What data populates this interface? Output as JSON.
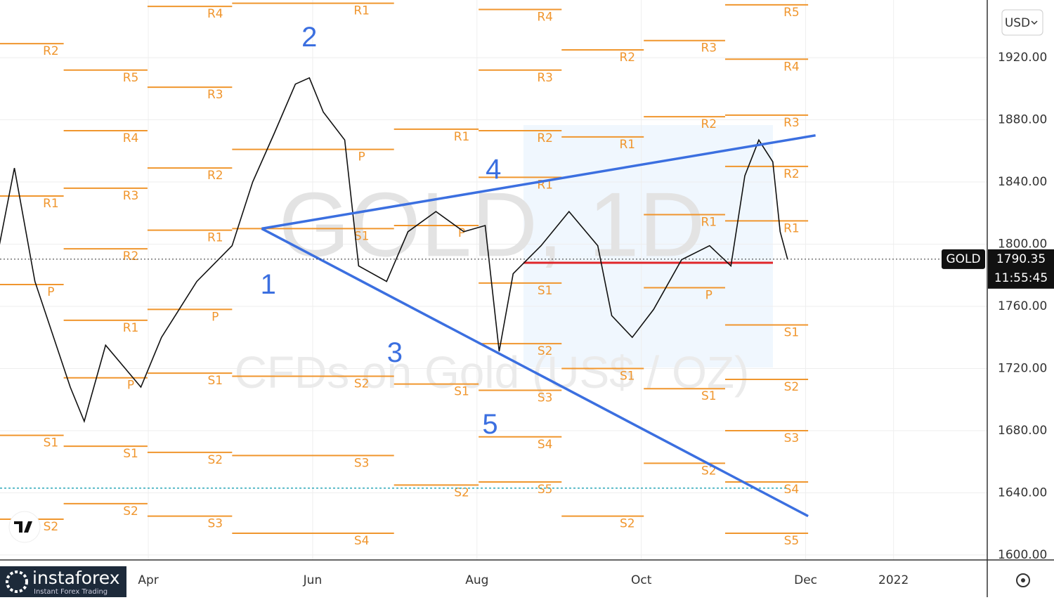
{
  "chart_data": {
    "type": "line",
    "symbol": "GOLD",
    "watermark": "GOLD, 1D",
    "subtitle": "CFDs on Gold (US$ / OZ)",
    "currency": "USD",
    "countdown": "11:55:45",
    "brand": "instaforex",
    "tagline": "Instant Forex Trading",
    "x": [
      2.19,
      2.37,
      2.62,
      3.05,
      3.22,
      3.48,
      3.91,
      4.16,
      4.59,
      5.02,
      5.27,
      5.53,
      5.79,
      5.96,
      6.13,
      6.39,
      6.56,
      6.9,
      7.16,
      7.5,
      7.84,
      8.1,
      8.27,
      8.44,
      8.78,
      9.12,
      9.47,
      9.64,
      9.89,
      10.15,
      10.49,
      10.83,
      11.09,
      11.26,
      11.43,
      11.6,
      11.69,
      11.78
    ],
    "close": [
      1800,
      1849,
      1776,
      1708,
      1686,
      1735,
      1708,
      1740,
      1776,
      1799,
      1840,
      1871,
      1903,
      1907,
      1885,
      1867,
      1786,
      1776,
      1808,
      1821,
      1808,
      1812,
      1731,
      1781,
      1799,
      1821,
      1799,
      1754,
      1740,
      1758,
      1790,
      1799,
      1786,
      1844,
      1867,
      1853,
      1808,
      1790.35
    ],
    "color": "#111111",
    "ylim": [
      1596.8,
      1957.1
    ],
    "yticks": [
      {
        "value": 1600,
        "label": "1600.00"
      },
      {
        "value": 1640,
        "label": "1640.00"
      },
      {
        "value": 1680,
        "label": "1680.00"
      },
      {
        "value": 1720,
        "label": "1720.00"
      },
      {
        "value": 1760,
        "label": "1760.00"
      },
      {
        "value": 1800,
        "label": "1800.00"
      },
      {
        "value": 1840,
        "label": "1840.00"
      },
      {
        "value": 1880,
        "label": "1880.00"
      },
      {
        "value": 1920,
        "label": "1920.00"
      }
    ],
    "xlim": [
      2.195,
      14.21
    ],
    "xticks": [
      {
        "value": 4,
        "label": "Apr"
      },
      {
        "value": 6,
        "label": "Jun"
      },
      {
        "value": 8,
        "label": "Aug"
      },
      {
        "value": 10,
        "label": "Oct"
      },
      {
        "value": 12,
        "label": "Dec"
      },
      {
        "value": 13.07,
        "label": "2022"
      }
    ],
    "grid": true,
    "pivot_color": "#f0962e",
    "pivots": [
      {
        "label": "R2",
        "value": 1929,
        "from": 2.19,
        "to": 2.97
      },
      {
        "label": "R1",
        "value": 1831,
        "from": 2.19,
        "to": 2.97
      },
      {
        "label": "P",
        "value": 1774,
        "from": 2.19,
        "to": 2.97
      },
      {
        "label": "S1",
        "value": 1677,
        "from": 2.19,
        "to": 2.97
      },
      {
        "label": "S2",
        "value": 1623,
        "from": 2.19,
        "to": 2.97
      },
      {
        "label": "R5",
        "value": 1912,
        "from": 2.97,
        "to": 3.99
      },
      {
        "label": "R4",
        "value": 1873,
        "from": 2.97,
        "to": 3.99
      },
      {
        "label": "R3",
        "value": 1836,
        "from": 2.97,
        "to": 3.99
      },
      {
        "label": "R2",
        "value": 1797,
        "from": 2.97,
        "to": 3.99
      },
      {
        "label": "R1",
        "value": 1751,
        "from": 2.97,
        "to": 3.99
      },
      {
        "label": "P",
        "value": 1714,
        "from": 2.97,
        "to": 3.99
      },
      {
        "label": "S1",
        "value": 1670,
        "from": 2.97,
        "to": 3.99
      },
      {
        "label": "S2",
        "value": 1633,
        "from": 2.97,
        "to": 3.99
      },
      {
        "label": "R4",
        "value": 1953,
        "from": 3.99,
        "to": 5.02
      },
      {
        "label": "R3",
        "value": 1901,
        "from": 3.99,
        "to": 5.02
      },
      {
        "label": "R2",
        "value": 1849,
        "from": 3.99,
        "to": 5.02
      },
      {
        "label": "R1",
        "value": 1809,
        "from": 3.99,
        "to": 5.02
      },
      {
        "label": "P",
        "value": 1758,
        "from": 3.99,
        "to": 5.02
      },
      {
        "label": "S1",
        "value": 1717,
        "from": 3.99,
        "to": 5.02
      },
      {
        "label": "S2",
        "value": 1666,
        "from": 3.99,
        "to": 5.02
      },
      {
        "label": "S3",
        "value": 1625,
        "from": 3.99,
        "to": 5.02
      },
      {
        "label": "R1",
        "value": 1955,
        "from": 5.02,
        "to": 6.99
      },
      {
        "label": "P",
        "value": 1861,
        "from": 5.02,
        "to": 6.99
      },
      {
        "label": "S1",
        "value": 1810,
        "from": 5.02,
        "to": 6.99
      },
      {
        "label": "S2",
        "value": 1715,
        "from": 5.02,
        "to": 6.99
      },
      {
        "label": "S3",
        "value": 1664,
        "from": 5.02,
        "to": 6.99
      },
      {
        "label": "S4",
        "value": 1614,
        "from": 5.02,
        "to": 6.99
      },
      {
        "label": "R1",
        "value": 1874,
        "from": 6.99,
        "to": 8.02
      },
      {
        "label": "P",
        "value": 1812,
        "from": 6.99,
        "to": 8.02
      },
      {
        "label": "S1",
        "value": 1710,
        "from": 6.99,
        "to": 8.02
      },
      {
        "label": "S2",
        "value": 1645,
        "from": 6.99,
        "to": 8.02
      },
      {
        "label": "R4",
        "value": 1951,
        "from": 8.02,
        "to": 9.03
      },
      {
        "label": "R3",
        "value": 1912,
        "from": 8.02,
        "to": 9.03
      },
      {
        "label": "R2",
        "value": 1873,
        "from": 8.02,
        "to": 9.03
      },
      {
        "label": "R1",
        "value": 1843,
        "from": 8.02,
        "to": 9.03
      },
      {
        "label": "S1",
        "value": 1775,
        "from": 8.02,
        "to": 9.03
      },
      {
        "label": "S2",
        "value": 1736,
        "from": 8.02,
        "to": 9.03
      },
      {
        "label": "S3",
        "value": 1706,
        "from": 8.02,
        "to": 9.03
      },
      {
        "label": "S4",
        "value": 1676,
        "from": 8.02,
        "to": 9.03
      },
      {
        "label": "S5",
        "value": 1647,
        "from": 8.02,
        "to": 9.03
      },
      {
        "label": "R2",
        "value": 1925,
        "from": 9.03,
        "to": 10.03
      },
      {
        "label": "R1",
        "value": 1869,
        "from": 9.03,
        "to": 10.03
      },
      {
        "label": "S1",
        "value": 1720,
        "from": 9.03,
        "to": 10.03
      },
      {
        "label": "S2",
        "value": 1625,
        "from": 9.03,
        "to": 10.03
      },
      {
        "label": "R3",
        "value": 1931,
        "from": 10.03,
        "to": 11.02
      },
      {
        "label": "R2",
        "value": 1882,
        "from": 10.03,
        "to": 11.02
      },
      {
        "label": "R1",
        "value": 1819,
        "from": 10.03,
        "to": 11.02
      },
      {
        "label": "P",
        "value": 1772,
        "from": 10.03,
        "to": 11.02
      },
      {
        "label": "S1",
        "value": 1707,
        "from": 10.03,
        "to": 11.02
      },
      {
        "label": "S2",
        "value": 1659,
        "from": 10.03,
        "to": 11.02
      },
      {
        "label": "R5",
        "value": 1954,
        "from": 11.02,
        "to": 12.03
      },
      {
        "label": "R4",
        "value": 1919,
        "from": 11.02,
        "to": 12.03
      },
      {
        "label": "R3",
        "value": 1883,
        "from": 11.02,
        "to": 12.03
      },
      {
        "label": "R2",
        "value": 1850,
        "from": 11.02,
        "to": 12.03
      },
      {
        "label": "R1",
        "value": 1815,
        "from": 11.02,
        "to": 12.03
      },
      {
        "label": "S1",
        "value": 1748,
        "from": 11.02,
        "to": 12.03
      },
      {
        "label": "S2",
        "value": 1713,
        "from": 11.02,
        "to": 12.03
      },
      {
        "label": "S3",
        "value": 1680,
        "from": 11.02,
        "to": 12.03
      },
      {
        "label": "S4",
        "value": 1647,
        "from": 11.02,
        "to": 12.03
      },
      {
        "label": "S5",
        "value": 1614,
        "from": 11.02,
        "to": 12.03
      }
    ],
    "trend_color": "#3b6fe0",
    "trendlines": [
      {
        "x": [
          5.38,
          12.12
        ],
        "y": [
          1810,
          1870
        ]
      },
      {
        "x": [
          5.38,
          12.03
        ],
        "y": [
          1810,
          1625
        ]
      }
    ],
    "support_level": 1643,
    "poc_level": 1788,
    "waves": [
      {
        "text": "1",
        "x": 5.46,
        "y": 1773
      },
      {
        "text": "2",
        "x": 5.96,
        "y": 1932
      },
      {
        "text": "3",
        "x": 7.0,
        "y": 1729
      },
      {
        "text": "4",
        "x": 8.2,
        "y": 1847
      },
      {
        "text": "5",
        "x": 8.16,
        "y": 1683
      }
    ]
  }
}
